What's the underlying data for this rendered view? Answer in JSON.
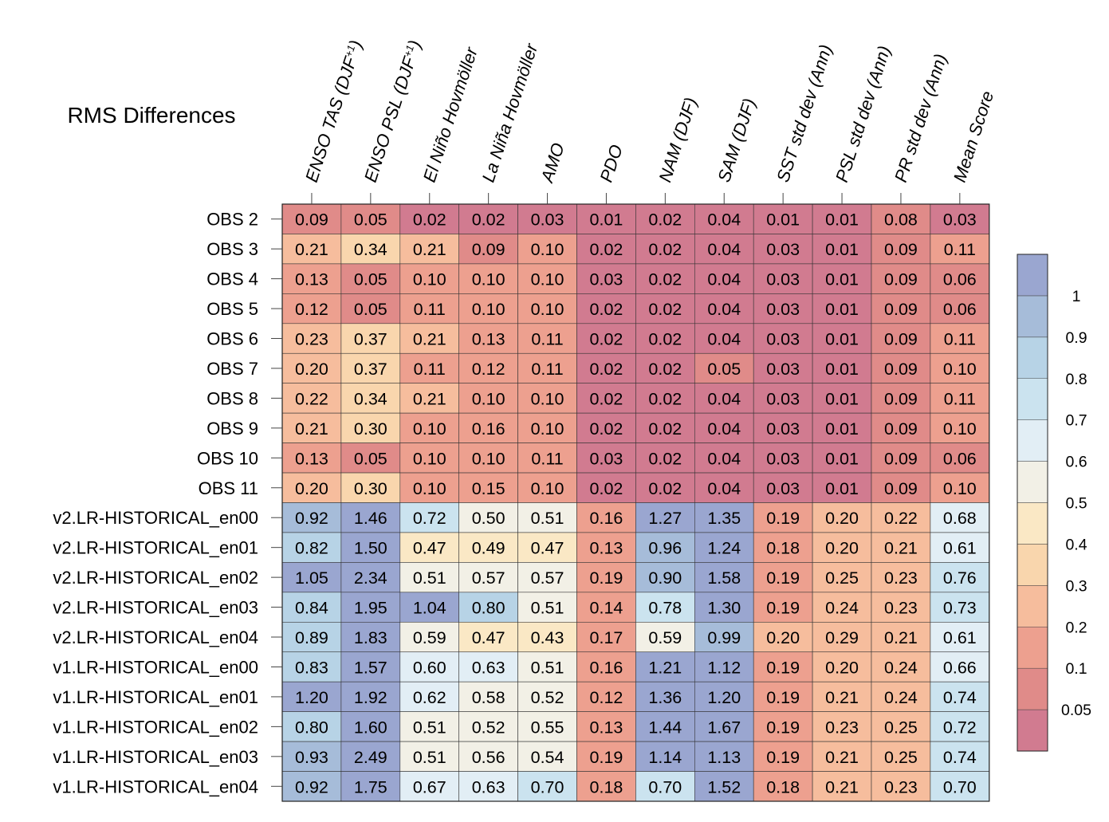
{
  "chart_data": {
    "type": "heatmap",
    "title": "RMS Differences",
    "columns": [
      "ENSO TAS (DJF+1)",
      "ENSO PSL (DJF+1)",
      "El Niño Hovmöller",
      "La Niña Hovmöller",
      "AMO",
      "PDO",
      "NAM (DJF)",
      "SAM (DJF)",
      "SST std dev (Ann)",
      "PSL std dev (Ann)",
      "PR std dev (Ann)",
      "Mean Score"
    ],
    "column_labels": [
      {
        "main": "ENSO TAS (DJF",
        "sup": "+1",
        "tail": ")"
      },
      {
        "main": "ENSO PSL (DJF",
        "sup": "+1",
        "tail": ")"
      },
      {
        "main": "El Niño Hovmöller",
        "sup": "",
        "tail": ""
      },
      {
        "main": "La Niña Hovmöller",
        "sup": "",
        "tail": ""
      },
      {
        "main": "AMO",
        "sup": "",
        "tail": ""
      },
      {
        "main": "PDO",
        "sup": "",
        "tail": ""
      },
      {
        "main": "NAM (DJF)",
        "sup": "",
        "tail": ""
      },
      {
        "main": "SAM (DJF)",
        "sup": "",
        "tail": ""
      },
      {
        "main": "SST std dev (Ann)",
        "sup": "",
        "tail": ""
      },
      {
        "main": "PSL std dev (Ann)",
        "sup": "",
        "tail": ""
      },
      {
        "main": "PR std dev (Ann)",
        "sup": "",
        "tail": ""
      },
      {
        "main": "Mean Score",
        "sup": "",
        "tail": ""
      }
    ],
    "rows": [
      "OBS 2",
      "OBS 3",
      "OBS 4",
      "OBS 5",
      "OBS 6",
      "OBS 7",
      "OBS 8",
      "OBS 9",
      "OBS 10",
      "OBS 11",
      "v2.LR-HISTORICAL_en00",
      "v2.LR-HISTORICAL_en01",
      "v2.LR-HISTORICAL_en02",
      "v2.LR-HISTORICAL_en03",
      "v2.LR-HISTORICAL_en04",
      "v1.LR-HISTORICAL_en00",
      "v1.LR-HISTORICAL_en01",
      "v1.LR-HISTORICAL_en02",
      "v1.LR-HISTORICAL_en03",
      "v1.LR-HISTORICAL_en04"
    ],
    "values": [
      [
        "0.09",
        "0.05",
        "0.02",
        "0.02",
        "0.03",
        "0.01",
        "0.02",
        "0.04",
        "0.01",
        "0.01",
        "0.08",
        "0.03"
      ],
      [
        "0.21",
        "0.34",
        "0.21",
        "0.09",
        "0.10",
        "0.02",
        "0.02",
        "0.04",
        "0.03",
        "0.01",
        "0.09",
        "0.11"
      ],
      [
        "0.13",
        "0.05",
        "0.10",
        "0.10",
        "0.10",
        "0.03",
        "0.02",
        "0.04",
        "0.03",
        "0.01",
        "0.09",
        "0.06"
      ],
      [
        "0.12",
        "0.05",
        "0.11",
        "0.10",
        "0.10",
        "0.02",
        "0.02",
        "0.04",
        "0.03",
        "0.01",
        "0.09",
        "0.06"
      ],
      [
        "0.23",
        "0.37",
        "0.21",
        "0.13",
        "0.11",
        "0.02",
        "0.02",
        "0.04",
        "0.03",
        "0.01",
        "0.09",
        "0.11"
      ],
      [
        "0.20",
        "0.37",
        "0.11",
        "0.12",
        "0.11",
        "0.02",
        "0.02",
        "0.05",
        "0.03",
        "0.01",
        "0.09",
        "0.10"
      ],
      [
        "0.22",
        "0.34",
        "0.21",
        "0.10",
        "0.10",
        "0.02",
        "0.02",
        "0.04",
        "0.03",
        "0.01",
        "0.09",
        "0.11"
      ],
      [
        "0.21",
        "0.30",
        "0.10",
        "0.16",
        "0.10",
        "0.02",
        "0.02",
        "0.04",
        "0.03",
        "0.01",
        "0.09",
        "0.10"
      ],
      [
        "0.13",
        "0.05",
        "0.10",
        "0.10",
        "0.11",
        "0.03",
        "0.02",
        "0.04",
        "0.03",
        "0.01",
        "0.09",
        "0.06"
      ],
      [
        "0.20",
        "0.30",
        "0.10",
        "0.15",
        "0.10",
        "0.02",
        "0.02",
        "0.04",
        "0.03",
        "0.01",
        "0.09",
        "0.10"
      ],
      [
        "0.92",
        "1.46",
        "0.72",
        "0.50",
        "0.51",
        "0.16",
        "1.27",
        "1.35",
        "0.19",
        "0.20",
        "0.22",
        "0.68"
      ],
      [
        "0.82",
        "1.50",
        "0.47",
        "0.49",
        "0.47",
        "0.13",
        "0.96",
        "1.24",
        "0.18",
        "0.20",
        "0.21",
        "0.61"
      ],
      [
        "1.05",
        "2.34",
        "0.51",
        "0.57",
        "0.57",
        "0.19",
        "0.90",
        "1.58",
        "0.19",
        "0.25",
        "0.23",
        "0.76"
      ],
      [
        "0.84",
        "1.95",
        "1.04",
        "0.80",
        "0.51",
        "0.14",
        "0.78",
        "1.30",
        "0.19",
        "0.24",
        "0.23",
        "0.73"
      ],
      [
        "0.89",
        "1.83",
        "0.59",
        "0.47",
        "0.43",
        "0.17",
        "0.59",
        "0.99",
        "0.20",
        "0.29",
        "0.21",
        "0.61"
      ],
      [
        "0.83",
        "1.57",
        "0.60",
        "0.63",
        "0.51",
        "0.16",
        "1.21",
        "1.12",
        "0.19",
        "0.20",
        "0.24",
        "0.66"
      ],
      [
        "1.20",
        "1.92",
        "0.62",
        "0.58",
        "0.52",
        "0.12",
        "1.36",
        "1.20",
        "0.19",
        "0.21",
        "0.24",
        "0.74"
      ],
      [
        "0.80",
        "1.60",
        "0.51",
        "0.52",
        "0.55",
        "0.13",
        "1.44",
        "1.67",
        "0.19",
        "0.23",
        "0.25",
        "0.72"
      ],
      [
        "0.93",
        "2.49",
        "0.51",
        "0.56",
        "0.54",
        "0.19",
        "1.14",
        "1.13",
        "0.19",
        "0.21",
        "0.25",
        "0.74"
      ],
      [
        "0.92",
        "1.75",
        "0.67",
        "0.63",
        "0.70",
        "0.18",
        "0.70",
        "1.52",
        "0.18",
        "0.21",
        "0.23",
        "0.70"
      ]
    ],
    "colorbar": {
      "levels": [
        0.05,
        0.1,
        0.2,
        0.3,
        0.4,
        0.5,
        0.6,
        0.7,
        0.8,
        0.9,
        1
      ],
      "tick_labels": [
        "0.05",
        "0.1",
        "0.2",
        "0.3",
        "0.4",
        "0.5",
        "0.6",
        "0.7",
        "0.8",
        "0.9",
        "1"
      ],
      "colors": [
        "#d17b90",
        "#e08b89",
        "#eda08f",
        "#f6bd9d",
        "#f9d6ad",
        "#fae8c5",
        "#f2f0e6",
        "#e2eef5",
        "#cbe3ef",
        "#b7d3e6",
        "#a6bcd9",
        "#9aa6d0"
      ],
      "placement": "right"
    },
    "grid": true
  }
}
